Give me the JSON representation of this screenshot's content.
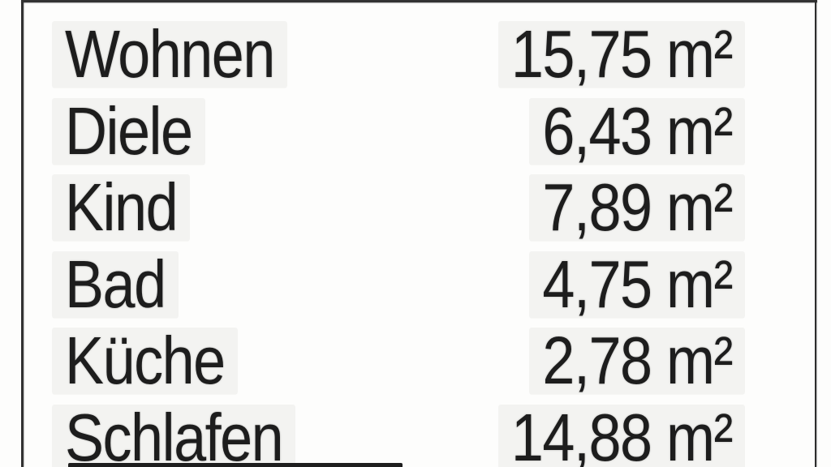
{
  "table": {
    "rows": [
      {
        "label": "Wohnen",
        "area": "15,75 m²"
      },
      {
        "label": "Diele",
        "area": "6,43 m²"
      },
      {
        "label": "Kind",
        "area": "7,89 m²"
      },
      {
        "label": "Bad",
        "area": "4,75 m²"
      },
      {
        "label": "Küche",
        "area": "2,78 m²"
      },
      {
        "label": "Schlafen",
        "area": "14,88 m²"
      }
    ],
    "unit": "m²"
  },
  "colors": {
    "text": "#1d1d1d",
    "frame": "#323232",
    "background": "#fdfdfc",
    "text_halo": "#f3f3f1",
    "bottom_rule": "#1e1e1e"
  }
}
